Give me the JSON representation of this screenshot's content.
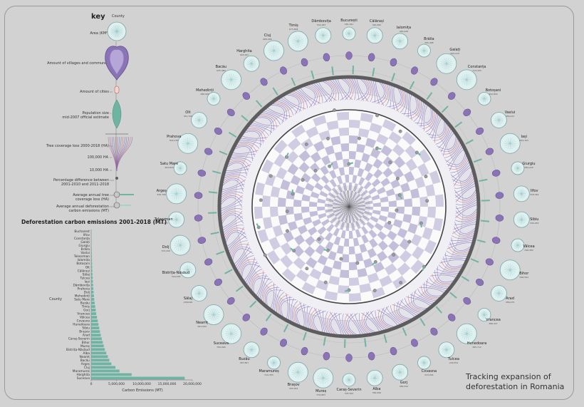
{
  "key": {
    "title": "key",
    "county_label": "County",
    "labels": [
      {
        "text": "Area (KM²)"
      },
      {
        "text": "Amount of villages and communes"
      },
      {
        "text": "Amount of cities"
      },
      {
        "text": "Population size\nmid-2007 official estimate"
      },
      {
        "text": "Tree coverage loss 2000-2018 (HA)"
      },
      {
        "text": "100,000 HA"
      },
      {
        "text": "10,000 HA"
      },
      {
        "text": "Percentage difference between\n2001-2010 and 2011-2018"
      },
      {
        "text": "Average annual tree\ncoverage loss (HA)"
      },
      {
        "text": "Average annual deforestation\ncarbon emissions (MT)"
      }
    ]
  },
  "footer_title": "Tracking expansion of\ndeforestation in Romania",
  "chart_data": {
    "type": "bar",
    "orientation": "horizontal",
    "title": "Deforestation carbon emissions 2001-2018 (MT)",
    "ylabel": "County",
    "xlabel": "Carbon Emissions (MT)",
    "xticks": [
      "0",
      "5,000,000",
      "10,000,000",
      "15,000,000",
      "20,000,000"
    ],
    "xlim": [
      0,
      20000000
    ],
    "categories": [
      "Bucharest",
      "Ilfov",
      "Constanța",
      "Galați",
      "Giurgiu",
      "Brăila",
      "Vaslui",
      "Teleorman",
      "Ialomița",
      "Botoșani",
      "Olt",
      "Călărași",
      "Sălaj",
      "Tulcea",
      "Iași",
      "Dâmbovița",
      "Prahova",
      "Dolj",
      "Mehedinți",
      "Satu Mare",
      "Buzău",
      "Timiș",
      "Gorj",
      "Vrancea",
      "Vâlcea",
      "Covasna",
      "Hunedoara",
      "Sibiu",
      "Brașov",
      "Arad",
      "Caraș-Severin",
      "Bihor",
      "Mureș",
      "Bistrița-Năsăud",
      "Alba",
      "Neamț",
      "Bacău",
      "Argeș",
      "Cluj",
      "Maramureș",
      "Harghita",
      "Suceava"
    ],
    "values": [
      0,
      20000,
      40000,
      60000,
      80000,
      100000,
      120000,
      140000,
      160000,
      180000,
      200000,
      230000,
      260000,
      300000,
      340000,
      380000,
      430000,
      480000,
      540000,
      600000,
      700000,
      800000,
      900000,
      1000000,
      1150000,
      1300000,
      1450000,
      1600000,
      1750000,
      1900000,
      2100000,
      2300000,
      2500000,
      2700000,
      3000000,
      3300000,
      3600000,
      4000000,
      4800000,
      5600000,
      8000000,
      18500000
    ],
    "bar_color": "#6fb3a3"
  },
  "counties": [
    {
      "name": "București",
      "value": "281,391"
    },
    {
      "name": "Călărași",
      "value": "320,282"
    },
    {
      "name": "Ialomița",
      "value": "449,440"
    },
    {
      "name": "Brăila",
      "value": "355,498"
    },
    {
      "name": "Galați",
      "value": "620,914"
    },
    {
      "name": "Constanța",
      "value": "713,433"
    },
    {
      "name": "Botoșani",
      "value": "452,834"
    },
    {
      "name": "Vaslui",
      "value": "456,221"
    },
    {
      "name": "Iași",
      "value": "824,163"
    },
    {
      "name": "Giurgiu",
      "value": "282,229"
    },
    {
      "name": "Ilfov",
      "value": "318,344"
    },
    {
      "name": "Sibiu",
      "value": "343,293"
    },
    {
      "name": "Vâlcea",
      "value": "348,383"
    },
    {
      "name": "Bihor",
      "value": "596,564"
    },
    {
      "name": "Arad",
      "value": "458,476"
    },
    {
      "name": "Vrancea",
      "value": "386,327"
    },
    {
      "name": "Hunedoara",
      "value": "485,712"
    },
    {
      "name": "Tulcea",
      "value": "249,554"
    },
    {
      "name": "Covasna",
      "value": "223,004"
    },
    {
      "name": "Gorj",
      "value": "384,594"
    },
    {
      "name": "Alba",
      "value": "364,006"
    },
    {
      "name": "Caraș-Severin",
      "value": "325,363"
    },
    {
      "name": "Mureș",
      "value": "579,863"
    },
    {
      "name": "Brașov",
      "value": "593,942"
    },
    {
      "name": "Maramureș",
      "value": "510,455"
    },
    {
      "name": "Buzău",
      "value": "487,867"
    },
    {
      "name": "Suceava",
      "value": "709,966"
    },
    {
      "name": "Neamț",
      "value": "564,094"
    },
    {
      "name": "Sălaj",
      "value": "238,096"
    },
    {
      "name": "Bistrița-Năsăud",
      "value": "316,438"
    },
    {
      "name": "Dolj",
      "value": "703,440"
    },
    {
      "name": "Teleorman",
      "value": "408,047"
    },
    {
      "name": "Argeș",
      "value": "645,799"
    },
    {
      "name": "Satu Mare",
      "value": "364,816"
    },
    {
      "name": "Prahova",
      "value": "820,156"
    },
    {
      "name": "Olt",
      "value": "461,706"
    },
    {
      "name": "Mehedinți",
      "value": "286,060"
    },
    {
      "name": "Bacău",
      "value": "625,484"
    },
    {
      "name": "Harghita",
      "value": "325,991"
    },
    {
      "name": "Cluj",
      "value": "689,089"
    },
    {
      "name": "Timiș",
      "value": "673,898"
    },
    {
      "name": "Dâmbovița",
      "value": "532,287"
    }
  ],
  "colors": {
    "background": "#d2d2d2",
    "circle_fill": "#dff0f0",
    "circle_stroke": "#7aa6a6",
    "purple": "#6a5aa0",
    "teal": "#6fb3a3",
    "checker_light": "#e8e6f0",
    "checker_dark": "#b9b4d3",
    "ring_dark": "#5d5d5d"
  }
}
